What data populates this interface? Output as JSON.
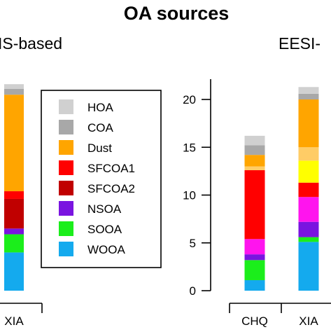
{
  "chart_data": {
    "type": "bar",
    "title": "OA sources",
    "legend_position": "left-inside",
    "legend": [
      {
        "name": "HOA",
        "color": "#d0d0d0"
      },
      {
        "name": "COA",
        "color": "#a8a8a8"
      },
      {
        "name": "Dust",
        "color": "#ffa500"
      },
      {
        "name": "SFCOA1",
        "color": "#ff0000"
      },
      {
        "name": "SFCOA2",
        "color": "#c00000"
      },
      {
        "name": "NSOA",
        "color": "#7a14e0"
      },
      {
        "name": "SOOA",
        "color": "#1bee1b"
      },
      {
        "name": "WOOA",
        "color": "#14aaee"
      }
    ],
    "panels": [
      {
        "subtitle": "AMS-based",
        "visible_subtitle": "IS-based",
        "ylim": [
          0,
          21.3
        ],
        "categories": [
          "XIA"
        ],
        "bars": [
          {
            "category": "XIA",
            "segments": [
              {
                "name": "WOOA",
                "value": 4.0,
                "color": "#14aaee"
              },
              {
                "name": "SOOA",
                "value": 1.9,
                "color": "#1bee1b"
              },
              {
                "name": "NSOA",
                "value": 0.6,
                "color": "#7a14e0"
              },
              {
                "name": "SFCOA2",
                "value": 3.1,
                "color": "#c00000"
              },
              {
                "name": "SFCOA1",
                "value": 0.8,
                "color": "#ff0000"
              },
              {
                "name": "Dust",
                "value": 10.1,
                "color": "#ffa500"
              },
              {
                "name": "COA",
                "value": 0.6,
                "color": "#a8a8a8"
              },
              {
                "name": "HOA",
                "value": 0.5,
                "color": "#d0d0d0"
              }
            ]
          }
        ]
      },
      {
        "subtitle": "EESI-based",
        "visible_subtitle": "EESI-",
        "ylim": [
          0,
          21.3
        ],
        "yticks": [
          0,
          5,
          10,
          15,
          20
        ],
        "categories": [
          "CHQ",
          "XIA"
        ],
        "bars": [
          {
            "category": "CHQ",
            "segments": [
              {
                "name": "WOOA",
                "value": 1.1,
                "color": "#14aaee"
              },
              {
                "name": "SOOA",
                "value": 2.1,
                "color": "#1bee1b"
              },
              {
                "name": "NSOA",
                "value": 0.6,
                "color": "#7a14e0"
              },
              {
                "name": "magenta",
                "value": 1.6,
                "color": "#ff14ee"
              },
              {
                "name": "SFCOA1",
                "value": 7.2,
                "color": "#ff0000"
              },
              {
                "name": "light orange",
                "value": 0.4,
                "color": "#ffcc66"
              },
              {
                "name": "Dust",
                "value": 1.2,
                "color": "#ffa500"
              },
              {
                "name": "COA",
                "value": 1.0,
                "color": "#a8a8a8"
              },
              {
                "name": "HOA",
                "value": 1.0,
                "color": "#d0d0d0"
              }
            ]
          },
          {
            "category": "XIA",
            "segments": [
              {
                "name": "WOOA",
                "value": 5.1,
                "color": "#14aaee"
              },
              {
                "name": "SOOA",
                "value": 0.5,
                "color": "#1bee1b"
              },
              {
                "name": "NSOA",
                "value": 1.6,
                "color": "#7a14e0"
              },
              {
                "name": "magenta",
                "value": 2.6,
                "color": "#ff14ee"
              },
              {
                "name": "SFCOA1",
                "value": 1.5,
                "color": "#ff0000"
              },
              {
                "name": "yellow",
                "value": 2.3,
                "color": "#ffff00"
              },
              {
                "name": "light orange",
                "value": 1.4,
                "color": "#ffcc66"
              },
              {
                "name": "Dust",
                "value": 5.0,
                "color": "#ffa500"
              },
              {
                "name": "COA",
                "value": 0.6,
                "color": "#a8a8a8"
              },
              {
                "name": "HOA",
                "value": 0.7,
                "color": "#d0d0d0"
              }
            ]
          }
        ]
      }
    ]
  }
}
